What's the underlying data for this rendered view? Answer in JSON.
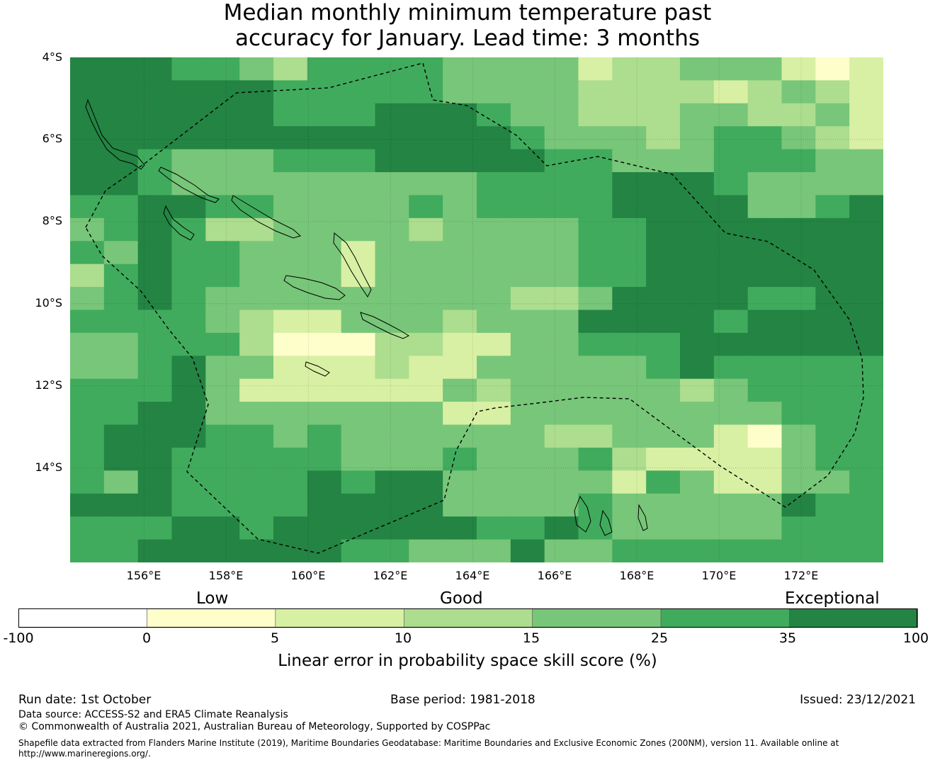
{
  "title": {
    "line1": "Median monthly minimum temperature past",
    "line2": "accuracy for January. Lead time: 3 months"
  },
  "axes": {
    "lat_labels": [
      "4°S",
      "6°S",
      "8°S",
      "10°S",
      "12°S",
      "14°S"
    ],
    "lon_labels": [
      "156°E",
      "158°E",
      "160°E",
      "162°E",
      "164°E",
      "166°E",
      "168°E",
      "170°E",
      "172°E"
    ]
  },
  "map": {
    "extent": {
      "lon_min": 154.2,
      "lon_max": 174.0,
      "lat_min": -16.3,
      "lat_max": -4.0
    },
    "cell_columns": 24,
    "cell_rows": 22,
    "category_colors": [
      "#ffffff",
      "#fefecb",
      "#d8f0a3",
      "#addd8e",
      "#78c679",
      "#41ab5d",
      "#238443"
    ],
    "grid_rows": [
      "666554355554444233444212",
      "666666555554444333323432",
      "666666555666544333443342",
      "666666666666654443455432",
      "665444555666665544455544",
      "665444444444555566654444",
      "556655444454555566664456",
      "456533444434444556666666",
      "546554442444444556666666",
      "356554442444444556666666",
      "456544444444433466665566",
      "555543224443444666656666",
      "445553111332244555666666",
      "445644222322444445655555",
      "555642222224344444345555",
      "556644444442244444444555",
      "566655454444443344421455",
      "566555554445444532222455",
      "546555565664444425422445",
      "666555566664444544444655",
      "555665666666556544444555",
      "556666665544464455555555"
    ]
  },
  "colorbar": {
    "word_low": "Low",
    "word_good": "Good",
    "word_exceptional": "Exceptional",
    "ticks": [
      "-100",
      "0",
      "5",
      "10",
      "15",
      "25",
      "35",
      "100"
    ],
    "label": "Linear error in probability space skill score (%)"
  },
  "footer": {
    "run_date": "Run date: 1st October",
    "base_period": "Base period: 1981-2018",
    "issued": "Issued: 23/12/2021",
    "data_source": "Data source: ACCESS-S2 and ERA5 Climate Reanalysis",
    "copyright": "© Commonwealth of Australia 2021, Australian Bureau of Meteorology, Supported by COSPPac",
    "shapefile_line1": "Shapefile data extracted from Flanders Marine Institute (2019), Maritime Boundaries Geodatabase: Maritime Boundaries and Exclusive Economic Zones (200NM), version 11. Available online at",
    "shapefile_line2": "http://www.marineregions.org/."
  }
}
